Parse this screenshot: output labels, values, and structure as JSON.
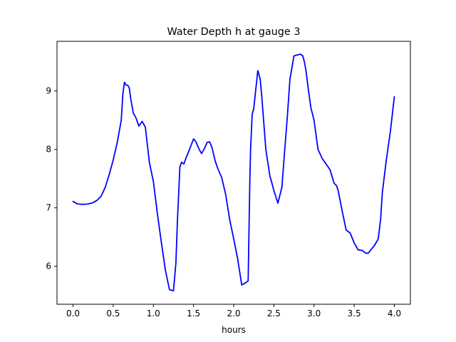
{
  "chart_data": {
    "type": "line",
    "title": "Water Depth h at gauge 3",
    "xlabel": "hours",
    "ylabel": "",
    "xlim": [
      -0.2,
      4.2
    ],
    "ylim": [
      5.35,
      9.85
    ],
    "xticks": [
      0.0,
      0.5,
      1.0,
      1.5,
      2.0,
      2.5,
      3.0,
      3.5,
      4.0
    ],
    "xtick_labels": [
      "0.0",
      "0.5",
      "1.0",
      "1.5",
      "2.0",
      "2.5",
      "3.0",
      "3.5",
      "4.0"
    ],
    "yticks": [
      6,
      7,
      8,
      9
    ],
    "ytick_labels": [
      "6",
      "7",
      "8",
      "9"
    ],
    "grid": false,
    "series": [
      {
        "color": "#0000ff",
        "x": [
          0.0,
          0.05,
          0.1,
          0.15,
          0.2,
          0.25,
          0.3,
          0.35,
          0.4,
          0.45,
          0.5,
          0.55,
          0.6,
          0.62,
          0.64,
          0.66,
          0.68,
          0.7,
          0.72,
          0.75,
          0.78,
          0.82,
          0.86,
          0.9,
          0.95,
          1.0,
          1.05,
          1.1,
          1.15,
          1.2,
          1.25,
          1.28,
          1.3,
          1.33,
          1.35,
          1.38,
          1.4,
          1.45,
          1.5,
          1.53,
          1.57,
          1.6,
          1.63,
          1.67,
          1.7,
          1.73,
          1.77,
          1.8,
          1.85,
          1.9,
          1.95,
          2.0,
          2.05,
          2.1,
          2.15,
          2.18,
          2.2,
          2.21,
          2.23,
          2.25,
          2.3,
          2.33,
          2.35,
          2.4,
          2.45,
          2.5,
          2.55,
          2.6,
          2.63,
          2.67,
          2.7,
          2.75,
          2.8,
          2.83,
          2.86,
          2.88,
          2.9,
          2.93,
          2.96,
          3.0,
          3.05,
          3.1,
          3.15,
          3.2,
          3.25,
          3.28,
          3.3,
          3.35,
          3.4,
          3.45,
          3.5,
          3.55,
          3.6,
          3.65,
          3.68,
          3.7,
          3.75,
          3.8,
          3.83,
          3.85,
          3.9,
          3.95,
          4.0
        ],
        "y": [
          7.11,
          7.07,
          7.06,
          7.06,
          7.07,
          7.09,
          7.13,
          7.2,
          7.35,
          7.57,
          7.82,
          8.12,
          8.5,
          8.95,
          9.15,
          9.1,
          9.1,
          9.05,
          8.85,
          8.62,
          8.55,
          8.4,
          8.48,
          8.38,
          7.78,
          7.45,
          6.9,
          6.4,
          5.93,
          5.6,
          5.58,
          6.05,
          6.8,
          7.7,
          7.78,
          7.75,
          7.83,
          8.0,
          8.18,
          8.13,
          8.0,
          7.93,
          8.0,
          8.12,
          8.13,
          8.03,
          7.8,
          7.68,
          7.52,
          7.23,
          6.8,
          6.47,
          6.12,
          5.68,
          5.72,
          5.75,
          7.4,
          8.0,
          8.6,
          8.7,
          9.35,
          9.2,
          8.9,
          8.0,
          7.55,
          7.3,
          7.08,
          7.35,
          7.9,
          8.6,
          9.2,
          9.6,
          9.62,
          9.63,
          9.6,
          9.5,
          9.35,
          9.02,
          8.72,
          8.5,
          8.0,
          7.85,
          7.75,
          7.65,
          7.42,
          7.38,
          7.3,
          6.95,
          6.62,
          6.57,
          6.4,
          6.28,
          6.27,
          6.22,
          6.23,
          6.27,
          6.35,
          6.47,
          6.82,
          7.25,
          7.82,
          8.3,
          8.9
        ]
      }
    ]
  }
}
